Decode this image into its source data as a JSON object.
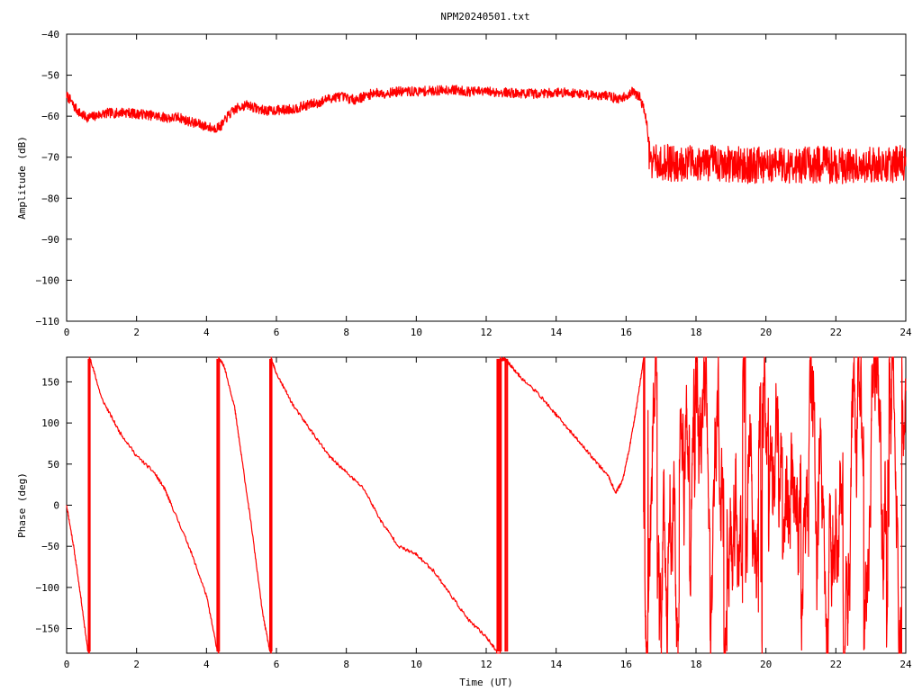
{
  "title": "NPM20240501.txt",
  "colors": {
    "trace": "#ff0000",
    "frame": "#000000",
    "background": "#ffffff"
  },
  "chart_data": [
    {
      "type": "line",
      "xlabel": "",
      "ylabel": "Amplitude (dB)",
      "xlim": [
        0,
        24
      ],
      "ylim": [
        -110,
        -40
      ],
      "x_ticks": [
        0,
        2,
        4,
        6,
        8,
        10,
        12,
        14,
        16,
        18,
        20,
        22,
        24
      ],
      "y_ticks": [
        -40,
        -50,
        -60,
        -70,
        -80,
        -90,
        -100,
        -110
      ],
      "grid": false,
      "series": [
        {
          "x": [
            0,
            0.1,
            0.2,
            0.3,
            0.4,
            0.5,
            0.6,
            0.7,
            0.8,
            1.0,
            1.2,
            1.4,
            1.6,
            1.8,
            2.0,
            2.2,
            2.4,
            2.6,
            2.8,
            3.0,
            3.2,
            3.4,
            3.6,
            3.8,
            4.0,
            4.2,
            4.4,
            4.5,
            4.6,
            4.8,
            5.0,
            5.2,
            5.4,
            5.6,
            5.8,
            6.0,
            6.2,
            6.4,
            6.6,
            6.8,
            7.0,
            7.2,
            7.4,
            7.6,
            7.8,
            8.0,
            8.2,
            8.4,
            8.6,
            8.8,
            9.0,
            9.5,
            10.0,
            10.5,
            11.0,
            11.5,
            12.0,
            12.5,
            13.0,
            13.5,
            14.0,
            14.5,
            15.0,
            15.5,
            15.8,
            16.0,
            16.2,
            16.4,
            16.5,
            16.6,
            16.65,
            16.7,
            16.8,
            17.0,
            17.5,
            18.0,
            18.5,
            19.0,
            19.5,
            20.0,
            20.5,
            21.0,
            21.5,
            22.0,
            22.5,
            23.0,
            23.5,
            24.0
          ],
          "y": [
            -55,
            -56,
            -57.5,
            -58.5,
            -59.5,
            -60,
            -60.3,
            -60.2,
            -60,
            -59.5,
            -59.2,
            -59.3,
            -59,
            -59.2,
            -59.5,
            -59.5,
            -59.8,
            -60,
            -60.3,
            -60.5,
            -60.2,
            -61,
            -61.5,
            -62,
            -62.5,
            -63,
            -62.5,
            -61.5,
            -60,
            -58.5,
            -57.5,
            -57.3,
            -58,
            -58.5,
            -58.7,
            -58.5,
            -58.5,
            -58.3,
            -58,
            -57.5,
            -57,
            -56.8,
            -56,
            -55.5,
            -55.2,
            -55.5,
            -56,
            -55.5,
            -55,
            -54.2,
            -54.5,
            -54,
            -54,
            -53.8,
            -53.5,
            -54,
            -54,
            -54.2,
            -54.5,
            -54.5,
            -54.2,
            -54.3,
            -54.8,
            -55,
            -56,
            -55,
            -54,
            -55.5,
            -58,
            -62,
            -68,
            -71,
            -71.5,
            -71.3,
            -71.5,
            -71.3,
            -71.5,
            -71.8,
            -72,
            -72,
            -71.8,
            -72,
            -71.8,
            -72,
            -72,
            -71.7,
            -71.8,
            -71.5
          ],
          "noise_db": [
            1.2,
            1.2,
            1.2,
            1.2,
            1.2,
            1.2,
            1.2,
            1.2,
            1.2,
            1.2,
            1.2,
            1.2,
            1.2,
            1.2,
            1.2,
            1.2,
            1.2,
            1.2,
            1.2,
            1.2,
            1.2,
            1.2,
            1.2,
            1.2,
            1.2,
            1.2,
            1.2,
            1.2,
            1.2,
            1.2,
            1.2,
            1.2,
            1.2,
            1.2,
            1.2,
            1.2,
            1.2,
            1.2,
            1.2,
            1.2,
            1.2,
            1.2,
            1.2,
            1.2,
            1.2,
            1.2,
            1.2,
            1.2,
            1.2,
            1.2,
            1.2,
            1.2,
            1.2,
            1.2,
            1.2,
            1.2,
            1.2,
            1.2,
            1.2,
            1.2,
            1.2,
            1.2,
            1.2,
            1.2,
            1.2,
            1.2,
            1.2,
            1.2,
            1.2,
            1.2,
            4.5,
            4.5,
            4.5,
            4.5,
            4.5,
            4.5,
            4.5,
            4.5,
            4.5,
            4.5,
            4.5,
            4.5,
            4.5,
            4.5,
            4.5,
            4.5,
            4.5,
            4.5
          ]
        }
      ]
    },
    {
      "type": "line",
      "xlabel": "Time (UT)",
      "ylabel": "Phase (deg)",
      "xlim": [
        0,
        24
      ],
      "ylim": [
        -180,
        180
      ],
      "x_ticks": [
        0,
        2,
        4,
        6,
        8,
        10,
        12,
        14,
        16,
        18,
        20,
        22,
        24
      ],
      "y_ticks": [
        150,
        100,
        50,
        0,
        -50,
        -100,
        -150
      ],
      "grid": false,
      "series": [
        {
          "x": [
            0,
            0.2,
            0.4,
            0.6,
            0.65,
            0.7,
            1.0,
            1.5,
            2.0,
            2.5,
            2.8,
            3.0,
            3.5,
            4.0,
            4.3,
            4.35,
            4.5,
            4.8,
            5.0,
            5.3,
            5.6,
            5.8,
            5.85,
            6.0,
            6.5,
            7.0,
            7.5,
            8.0,
            8.5,
            9.0,
            9.5,
            10.0,
            10.5,
            11.0,
            11.5,
            12.0,
            12.3,
            12.4,
            12.5,
            12.6,
            12.7,
            13.0,
            13.5,
            14.0,
            14.5,
            15.0,
            15.5,
            15.7,
            15.9,
            16.1,
            16.3,
            16.5
          ],
          "y": [
            0,
            -50,
            -110,
            -175,
            178,
            175,
            130,
            90,
            60,
            40,
            20,
            0,
            -50,
            -110,
            -175,
            178,
            170,
            120,
            60,
            -30,
            -130,
            -175,
            178,
            160,
            120,
            90,
            60,
            40,
            20,
            -20,
            -50,
            -60,
            -80,
            -110,
            -140,
            -160,
            -178,
            176,
            178,
            175,
            170,
            155,
            135,
            110,
            85,
            60,
            35,
            15,
            30,
            70,
            120,
            178
          ],
          "wrap_points": [
            [
              0.63,
              -178,
              178
            ],
            [
              0.66,
              178,
              -178
            ],
            [
              4.31,
              -178,
              178
            ],
            [
              4.36,
              178,
              -178
            ],
            [
              5.82,
              -178,
              178
            ],
            [
              5.86,
              178,
              -178
            ],
            [
              12.32,
              -178,
              178
            ],
            [
              12.36,
              178,
              -178
            ],
            [
              12.42,
              -178,
              178
            ],
            [
              12.55,
              178,
              -178
            ],
            [
              12.6,
              -178,
              178
            ]
          ],
          "noisy_range": [
            16.5,
            24.0
          ],
          "noisy_amplitude_deg": 180
        }
      ]
    }
  ]
}
